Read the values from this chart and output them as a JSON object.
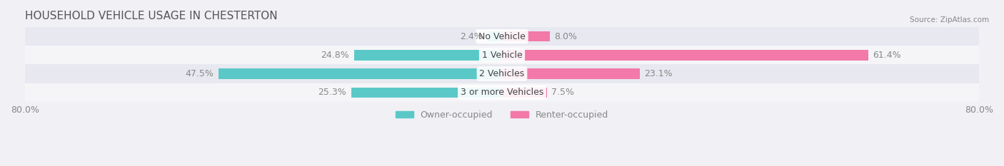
{
  "title": "HOUSEHOLD VEHICLE USAGE IN CHESTERTON",
  "source_text": "Source: ZipAtlas.com",
  "categories": [
    "No Vehicle",
    "1 Vehicle",
    "2 Vehicles",
    "3 or more Vehicles"
  ],
  "owner_values": [
    2.4,
    24.8,
    47.5,
    25.3
  ],
  "renter_values": [
    8.0,
    61.4,
    23.1,
    7.5
  ],
  "owner_color": "#5bc8c8",
  "renter_color": "#f279a8",
  "background_color": "#f0f0f5",
  "row_bg_colors": [
    "#e8e8f0",
    "#f5f5f8"
  ],
  "axis_min": -80.0,
  "axis_max": 80.0,
  "label_color": "#888888",
  "title_color": "#555555",
  "bar_height": 0.55,
  "label_fontsize": 9,
  "title_fontsize": 11
}
